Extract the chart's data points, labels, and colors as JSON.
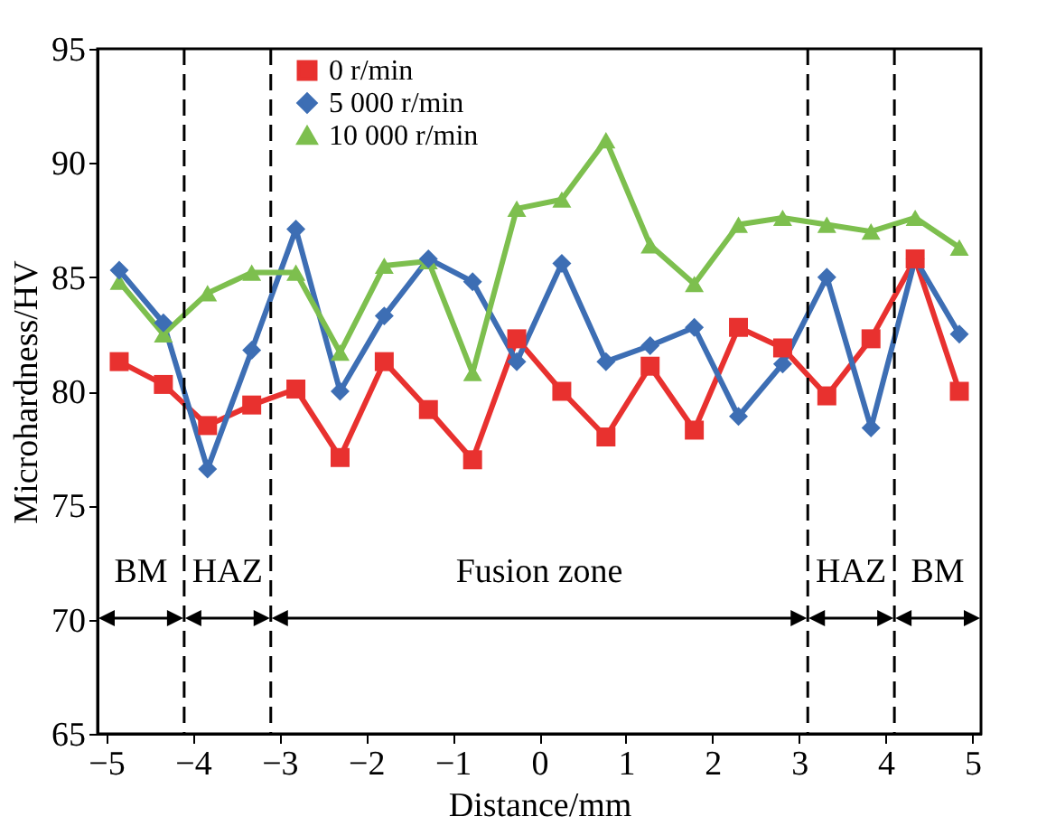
{
  "chart_data": {
    "type": "line",
    "xlabel": "Distance/mm",
    "ylabel": "Microhardness/HV",
    "x": [
      -4.85,
      -4.34,
      -3.83,
      -3.32,
      -2.81,
      -2.3,
      -1.79,
      -1.28,
      -0.77,
      -0.26,
      0.26,
      0.77,
      1.28,
      1.79,
      2.3,
      2.81,
      3.32,
      3.83,
      4.34,
      4.85
    ],
    "series": [
      {
        "name": "0 r/min",
        "color": "#e8312f",
        "marker": "square",
        "values": [
          81.3,
          80.3,
          78.5,
          79.4,
          80.1,
          77.1,
          81.3,
          79.2,
          77.0,
          82.3,
          80.0,
          78.0,
          81.1,
          78.3,
          82.8,
          81.9,
          79.8,
          82.3,
          85.8,
          80.0
        ]
      },
      {
        "name": "5 000 r/min",
        "color": "#3d6eb4",
        "marker": "diamond",
        "values": [
          85.3,
          83.0,
          76.6,
          81.8,
          87.1,
          80.0,
          83.3,
          85.8,
          84.8,
          81.3,
          85.6,
          81.3,
          82.0,
          82.8,
          78.9,
          81.2,
          85.0,
          78.4,
          85.8,
          82.5
        ]
      },
      {
        "name": "10 000 r/min",
        "color": "#7dbf4e",
        "marker": "triangle",
        "values": [
          84.8,
          82.5,
          84.3,
          85.2,
          85.2,
          81.7,
          85.5,
          85.7,
          80.8,
          88.0,
          88.4,
          91.0,
          86.4,
          84.7,
          87.3,
          87.6,
          87.3,
          87.0,
          87.6,
          86.3
        ]
      }
    ],
    "xlim": [
      -5.1,
      5.1
    ],
    "xticks": [
      -5,
      -4,
      -3,
      -2,
      -1,
      0,
      1,
      2,
      3,
      4,
      5
    ],
    "ylim": [
      65,
      95
    ],
    "yticks": [
      65,
      70,
      75,
      80,
      85,
      90,
      95
    ],
    "grid": false,
    "legend": "top",
    "line_style": "solid",
    "ref_lines": [
      {
        "axis": "x",
        "value": -4.1,
        "color": "#000000",
        "line_style": "dashed"
      },
      {
        "axis": "x",
        "value": -3.1,
        "color": "#000000",
        "line_style": "dashed"
      },
      {
        "axis": "x",
        "value": 3.1,
        "color": "#000000",
        "line_style": "dashed"
      },
      {
        "axis": "x",
        "value": 4.1,
        "color": "#000000",
        "line_style": "dashed"
      }
    ],
    "annotations": [
      "BM",
      "HAZ",
      "Fusion zone",
      "HAZ",
      "BM"
    ]
  }
}
